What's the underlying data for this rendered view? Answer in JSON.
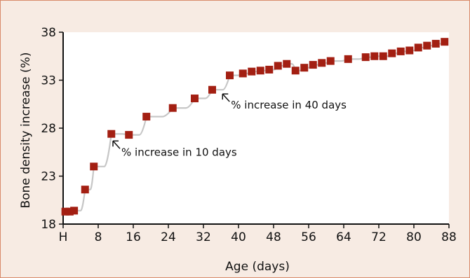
{
  "chart_data": {
    "type": "scatter",
    "xlabel": "Age (days)",
    "ylabel": "Bone density increase (%)",
    "xlim": [
      0,
      88
    ],
    "ylim": [
      18,
      38
    ],
    "x_ticks": [
      {
        "value": 0,
        "label": "H"
      },
      {
        "value": 8,
        "label": "8"
      },
      {
        "value": 16,
        "label": "16"
      },
      {
        "value": 24,
        "label": "24"
      },
      {
        "value": 32,
        "label": "32"
      },
      {
        "value": 40,
        "label": "40"
      },
      {
        "value": 48,
        "label": "48"
      },
      {
        "value": 56,
        "label": "56"
      },
      {
        "value": 64,
        "label": "64"
      },
      {
        "value": 72,
        "label": "72"
      },
      {
        "value": 80,
        "label": "80"
      },
      {
        "value": 88,
        "label": "88"
      }
    ],
    "y_ticks": [
      {
        "value": 18,
        "label": "18"
      },
      {
        "value": 23,
        "label": "23"
      },
      {
        "value": 28,
        "label": "28"
      },
      {
        "value": 33,
        "label": "33"
      },
      {
        "value": 38,
        "label": "38"
      }
    ],
    "grid": false,
    "series": [
      {
        "marker_color": "#a31f12",
        "line_color": "#c6c6c6",
        "points": [
          {
            "x": 0.5,
            "y": 19.3
          },
          {
            "x": 1.5,
            "y": 19.3
          },
          {
            "x": 2.5,
            "y": 19.4
          },
          {
            "x": 5,
            "y": 21.6
          },
          {
            "x": 7,
            "y": 24.0
          },
          {
            "x": 11,
            "y": 27.4
          },
          {
            "x": 15,
            "y": 27.3
          },
          {
            "x": 19,
            "y": 29.2
          },
          {
            "x": 25,
            "y": 30.1
          },
          {
            "x": 30,
            "y": 31.1
          },
          {
            "x": 34,
            "y": 32.0
          },
          {
            "x": 38,
            "y": 33.5
          },
          {
            "x": 41,
            "y": 33.7
          },
          {
            "x": 43,
            "y": 33.9
          },
          {
            "x": 45,
            "y": 34.0
          },
          {
            "x": 47,
            "y": 34.1
          },
          {
            "x": 49,
            "y": 34.5
          },
          {
            "x": 51,
            "y": 34.7
          },
          {
            "x": 53,
            "y": 34.0
          },
          {
            "x": 55,
            "y": 34.3
          },
          {
            "x": 57,
            "y": 34.6
          },
          {
            "x": 59,
            "y": 34.8
          },
          {
            "x": 61,
            "y": 35.0
          },
          {
            "x": 65,
            "y": 35.2
          },
          {
            "x": 69,
            "y": 35.4
          },
          {
            "x": 71,
            "y": 35.5
          },
          {
            "x": 73,
            "y": 35.5
          },
          {
            "x": 75,
            "y": 35.8
          },
          {
            "x": 77,
            "y": 36.0
          },
          {
            "x": 79,
            "y": 36.1
          },
          {
            "x": 81,
            "y": 36.4
          },
          {
            "x": 83,
            "y": 36.6
          },
          {
            "x": 85,
            "y": 36.8
          },
          {
            "x": 87,
            "y": 37.0
          }
        ]
      }
    ],
    "annotations": [
      {
        "text": "% increase in 10 days",
        "x": 12,
        "y": 26.3
      },
      {
        "text": "% increase in 40 days",
        "x": 37,
        "y": 31.2
      }
    ]
  }
}
